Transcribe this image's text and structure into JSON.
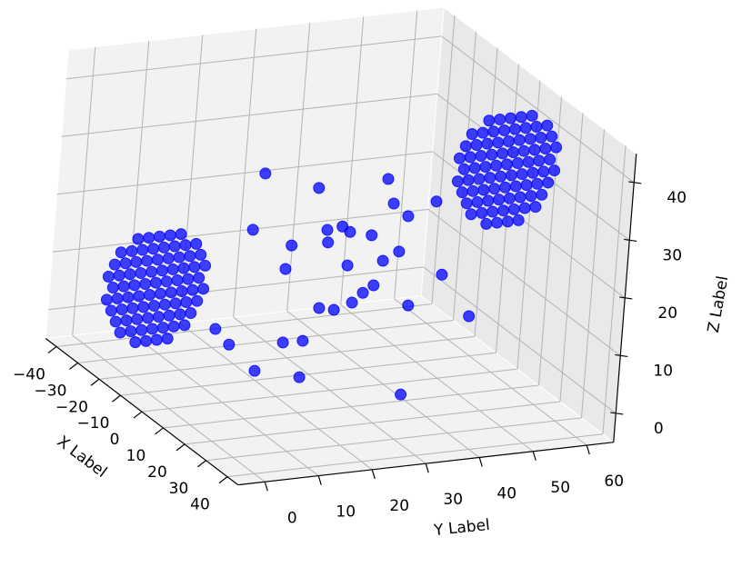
{
  "chart_data": {
    "type": "scatter3d",
    "x_label": "X Label",
    "y_label": "Y Label",
    "z_label": "Z Label",
    "xlim": [
      -45,
      45
    ],
    "ylim": [
      -5,
      65
    ],
    "zlim": [
      -5,
      45
    ],
    "xticks": [
      {
        "value": -40,
        "label": "−40"
      },
      {
        "value": -30,
        "label": "−30"
      },
      {
        "value": -20,
        "label": "−20"
      },
      {
        "value": -10,
        "label": "−10"
      },
      0,
      10,
      20,
      30,
      40
    ],
    "yticks": [
      0,
      10,
      20,
      30,
      40,
      50,
      60
    ],
    "zticks": [
      0,
      10,
      20,
      30,
      40
    ],
    "grid": true,
    "series": [
      {
        "color": "#0000ff",
        "x": [
          0,
          0,
          0,
          0,
          0,
          0,
          0,
          0,
          0,
          0,
          0,
          0,
          0,
          0,
          0,
          0,
          0,
          0,
          0,
          0,
          0,
          0,
          0,
          0,
          0,
          0,
          0,
          0,
          0,
          0,
          0,
          20
        ],
        "y": [
          14.7,
          25.0,
          37.9,
          39.3,
          42.2,
          47.3,
          13.2,
          27.2,
          30.0,
          31.5,
          35.6,
          27.5,
          20.7,
          41.0,
          19.9,
          31.5,
          38.1,
          49.4,
          36.7,
          34.8,
          32.9,
          43.5,
          26.8,
          29.6,
          55.1,
          7.6,
          10.4,
          20.5,
          24.2,
          15.6,
          24.1,
          34.9
        ],
        "z": [
          34.2,
          30.6,
          30.8,
          26.4,
          23.9,
          25.9,
          24.6,
          23.1,
          23.4,
          22.3,
          21.3,
          20.9,
          21.1,
          17.9,
          17.1,
          16.5,
          16.6,
          13.0,
          12.5,
          11.4,
          9.9,
          8.3,
          9.6,
          9.0,
          5.2,
          8.0,
          5.0,
          4.3,
          4.2,
          -0.1,
          -2.1,
          -0.6
        ]
      },
      {
        "color": "#0000ff",
        "x": [
          -10,
          -10,
          -10,
          -10,
          -10,
          -10,
          -10,
          -10,
          -10,
          -10,
          -10,
          -10,
          -10,
          -10,
          -10,
          -10,
          -10,
          -10,
          -10,
          -10,
          -10,
          -10,
          -10,
          -10,
          -10,
          -10,
          -10,
          -10,
          -10,
          -10,
          -10,
          -10,
          -10,
          -10,
          -10,
          -10,
          -10,
          -10,
          -10,
          -10,
          -10,
          -10,
          -10,
          -10,
          -10,
          -10,
          -10,
          -10,
          -10,
          -10,
          -10,
          -10,
          -10,
          -10,
          -10,
          -10,
          -10,
          -10,
          -10,
          -10,
          -10,
          -10,
          -10,
          -10,
          -10,
          -10,
          -10,
          -10,
          -10,
          -10,
          -10,
          -10,
          -10,
          -10,
          -10,
          -10,
          -10,
          -10,
          -10
        ],
        "y": [
          -3,
          -1,
          1,
          3,
          -6,
          -4,
          -2,
          0,
          2,
          4,
          6,
          -7,
          -5,
          -3,
          -1,
          1,
          3,
          5,
          7,
          -8,
          -6,
          -4,
          -2,
          0,
          2,
          4,
          6,
          8,
          -9,
          -7,
          -5,
          -3,
          -1,
          1,
          3,
          5,
          7,
          9,
          -8,
          -6,
          -4,
          -2,
          0,
          2,
          4,
          6,
          8,
          -9,
          -7,
          -5,
          -3,
          -1,
          1,
          3,
          5,
          7,
          9,
          -8,
          -6,
          -4,
          -2,
          0,
          2,
          4,
          6,
          8,
          -7,
          -5,
          -3,
          -1,
          1,
          3,
          5,
          7,
          -4,
          -2,
          0,
          2,
          4
        ],
        "z": [
          4,
          4,
          4,
          4,
          6,
          6,
          6,
          6,
          6,
          6,
          6,
          8,
          8,
          8,
          8,
          8,
          8,
          8,
          8,
          10,
          10,
          10,
          10,
          10,
          10,
          10,
          10,
          10,
          12,
          12,
          12,
          12,
          12,
          12,
          12,
          12,
          12,
          12,
          14,
          14,
          14,
          14,
          14,
          14,
          14,
          14,
          14,
          16,
          16,
          16,
          16,
          16,
          16,
          16,
          16,
          16,
          16,
          18,
          18,
          18,
          18,
          18,
          18,
          18,
          18,
          18,
          20,
          20,
          20,
          20,
          20,
          20,
          20,
          20,
          22,
          22,
          22,
          22,
          22
        ]
      },
      {
        "color": "#0000ff",
        "x": [
          0,
          0,
          0,
          0,
          0,
          0,
          0,
          0,
          0,
          0,
          0,
          0,
          0,
          0,
          0,
          0,
          0,
          0,
          0,
          0,
          0,
          0,
          0,
          0,
          0,
          0,
          0,
          0,
          0,
          0,
          0,
          0,
          0,
          0,
          0,
          0,
          0,
          0,
          0,
          0,
          0,
          0,
          0,
          0,
          0,
          0,
          0,
          0,
          0,
          0,
          0,
          0,
          0,
          0,
          0,
          0,
          0,
          0,
          0,
          0,
          0,
          0,
          0,
          0,
          0,
          0,
          0,
          0,
          0,
          0,
          0,
          0,
          0,
          0,
          0,
          0,
          0,
          0,
          0
        ],
        "y": [
          57,
          59,
          61,
          63,
          54,
          56,
          58,
          60,
          62,
          64,
          66,
          53,
          55,
          57,
          59,
          61,
          63,
          65,
          67,
          52,
          54,
          56,
          58,
          60,
          62,
          64,
          66,
          68,
          51,
          53,
          55,
          57,
          59,
          61,
          63,
          65,
          67,
          69,
          52,
          54,
          56,
          58,
          60,
          62,
          64,
          66,
          68,
          51,
          53,
          55,
          57,
          59,
          61,
          63,
          65,
          67,
          69,
          52,
          54,
          56,
          58,
          60,
          62,
          64,
          66,
          68,
          53,
          55,
          57,
          59,
          61,
          63,
          65,
          67,
          56,
          58,
          60,
          62,
          64
        ],
        "z": [
          21,
          21,
          21,
          21,
          23,
          23,
          23,
          23,
          23,
          23,
          23,
          25,
          25,
          25,
          25,
          25,
          25,
          25,
          25,
          27,
          27,
          27,
          27,
          27,
          27,
          27,
          27,
          27,
          29,
          29,
          29,
          29,
          29,
          29,
          29,
          29,
          29,
          29,
          31,
          31,
          31,
          31,
          31,
          31,
          31,
          31,
          31,
          33,
          33,
          33,
          33,
          33,
          33,
          33,
          33,
          33,
          33,
          35,
          35,
          35,
          35,
          35,
          35,
          35,
          35,
          35,
          37,
          37,
          37,
          37,
          37,
          37,
          37,
          37,
          39,
          39,
          39,
          39,
          39
        ]
      }
    ]
  }
}
